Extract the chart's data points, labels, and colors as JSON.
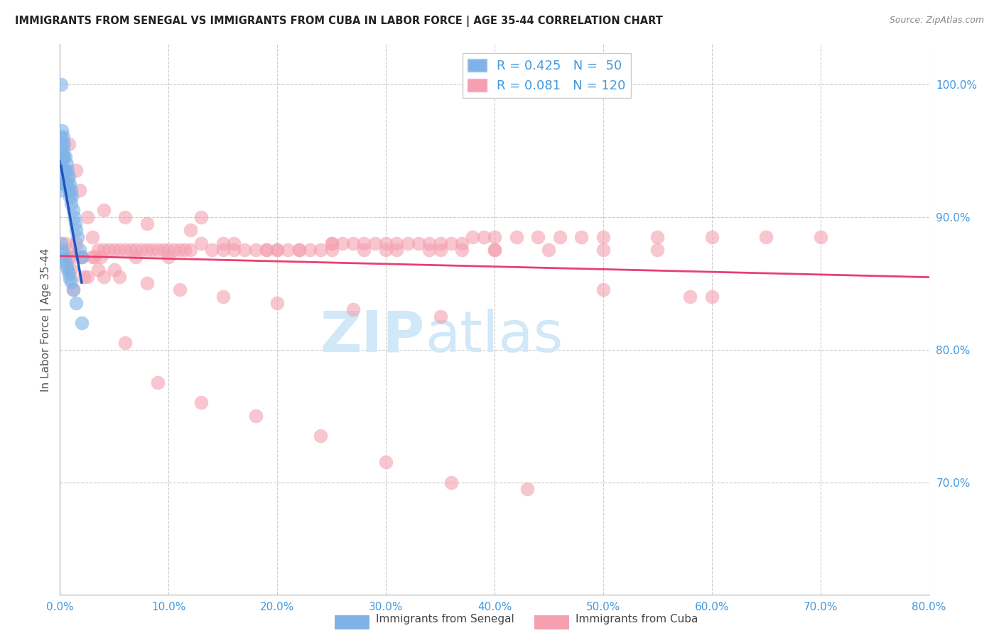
{
  "title": "IMMIGRANTS FROM SENEGAL VS IMMIGRANTS FROM CUBA IN LABOR FORCE | AGE 35-44 CORRELATION CHART",
  "source": "Source: ZipAtlas.com",
  "ylabel_left": "In Labor Force | Age 35-44",
  "x_tick_labels": [
    "0.0%",
    "10.0%",
    "20.0%",
    "30.0%",
    "40.0%",
    "50.0%",
    "60.0%",
    "70.0%",
    "80.0%"
  ],
  "x_tick_vals": [
    0.0,
    0.1,
    0.2,
    0.3,
    0.4,
    0.5,
    0.6,
    0.7,
    0.8
  ],
  "y_tick_labels_right": [
    "100.0%",
    "90.0%",
    "80.0%",
    "70.0%"
  ],
  "y_tick_vals": [
    1.0,
    0.9,
    0.8,
    0.7
  ],
  "xlim": [
    0.0,
    0.8
  ],
  "ylim": [
    0.615,
    1.03
  ],
  "legend_R_senegal": "R = 0.425",
  "legend_N_senegal": "N =  50",
  "legend_R_cuba": "R = 0.081",
  "legend_N_cuba": "N = 120",
  "color_senegal": "#7fb3e8",
  "color_cuba": "#f4a0b0",
  "color_senegal_line": "#2255bb",
  "color_cuba_line": "#e84070",
  "color_title": "#222222",
  "color_source": "#888888",
  "color_axis_labels": "#4499dd",
  "color_grid": "#cccccc",
  "watermark_zip": "ZIP",
  "watermark_atlas": "atlas",
  "watermark_color": "#d0e8f8",
  "senegal_x": [
    0.001,
    0.001,
    0.001,
    0.002,
    0.002,
    0.002,
    0.002,
    0.003,
    0.003,
    0.003,
    0.003,
    0.003,
    0.004,
    0.004,
    0.004,
    0.004,
    0.005,
    0.005,
    0.005,
    0.006,
    0.006,
    0.007,
    0.007,
    0.008,
    0.008,
    0.009,
    0.009,
    0.01,
    0.01,
    0.011,
    0.012,
    0.013,
    0.014,
    0.015,
    0.016,
    0.018,
    0.02,
    0.001,
    0.002,
    0.003,
    0.004,
    0.005,
    0.006,
    0.007,
    0.008,
    0.009,
    0.01,
    0.012,
    0.015,
    0.02
  ],
  "senegal_y": [
    1.0,
    0.96,
    0.92,
    0.965,
    0.955,
    0.945,
    0.935,
    0.96,
    0.95,
    0.945,
    0.935,
    0.925,
    0.955,
    0.945,
    0.935,
    0.925,
    0.945,
    0.935,
    0.925,
    0.94,
    0.93,
    0.935,
    0.925,
    0.93,
    0.92,
    0.925,
    0.915,
    0.92,
    0.91,
    0.915,
    0.905,
    0.9,
    0.895,
    0.89,
    0.885,
    0.875,
    0.87,
    0.88,
    0.875,
    0.872,
    0.869,
    0.866,
    0.863,
    0.86,
    0.857,
    0.854,
    0.851,
    0.845,
    0.835,
    0.82
  ],
  "cuba_x": [
    0.005,
    0.008,
    0.01,
    0.012,
    0.015,
    0.018,
    0.02,
    0.025,
    0.03,
    0.032,
    0.035,
    0.038,
    0.04,
    0.045,
    0.05,
    0.055,
    0.06,
    0.065,
    0.07,
    0.075,
    0.08,
    0.085,
    0.09,
    0.095,
    0.1,
    0.105,
    0.11,
    0.115,
    0.12,
    0.13,
    0.14,
    0.15,
    0.16,
    0.17,
    0.18,
    0.19,
    0.2,
    0.21,
    0.22,
    0.23,
    0.24,
    0.25,
    0.26,
    0.27,
    0.28,
    0.29,
    0.3,
    0.31,
    0.32,
    0.33,
    0.34,
    0.35,
    0.36,
    0.37,
    0.38,
    0.39,
    0.4,
    0.42,
    0.44,
    0.46,
    0.48,
    0.5,
    0.55,
    0.6,
    0.65,
    0.7,
    0.01,
    0.02,
    0.03,
    0.05,
    0.07,
    0.1,
    0.13,
    0.16,
    0.19,
    0.22,
    0.25,
    0.28,
    0.31,
    0.34,
    0.37,
    0.4,
    0.04,
    0.06,
    0.08,
    0.12,
    0.15,
    0.2,
    0.25,
    0.3,
    0.35,
    0.4,
    0.45,
    0.5,
    0.55,
    0.6,
    0.008,
    0.015,
    0.025,
    0.04,
    0.06,
    0.09,
    0.13,
    0.18,
    0.24,
    0.3,
    0.36,
    0.43,
    0.5,
    0.58,
    0.012,
    0.022,
    0.035,
    0.055,
    0.08,
    0.11,
    0.15,
    0.2,
    0.27,
    0.35
  ],
  "cuba_y": [
    0.88,
    0.87,
    0.875,
    0.87,
    0.88,
    0.92,
    0.87,
    0.9,
    0.885,
    0.87,
    0.875,
    0.87,
    0.875,
    0.875,
    0.875,
    0.875,
    0.875,
    0.875,
    0.875,
    0.875,
    0.875,
    0.875,
    0.875,
    0.875,
    0.875,
    0.875,
    0.875,
    0.875,
    0.875,
    0.88,
    0.875,
    0.875,
    0.875,
    0.875,
    0.875,
    0.875,
    0.875,
    0.875,
    0.875,
    0.875,
    0.875,
    0.88,
    0.88,
    0.88,
    0.88,
    0.88,
    0.88,
    0.88,
    0.88,
    0.88,
    0.88,
    0.88,
    0.88,
    0.88,
    0.885,
    0.885,
    0.885,
    0.885,
    0.885,
    0.885,
    0.885,
    0.885,
    0.885,
    0.885,
    0.885,
    0.885,
    0.86,
    0.87,
    0.87,
    0.86,
    0.87,
    0.87,
    0.9,
    0.88,
    0.875,
    0.875,
    0.88,
    0.875,
    0.875,
    0.875,
    0.875,
    0.875,
    0.905,
    0.9,
    0.895,
    0.89,
    0.88,
    0.875,
    0.875,
    0.875,
    0.875,
    0.875,
    0.875,
    0.875,
    0.875,
    0.84,
    0.955,
    0.935,
    0.855,
    0.855,
    0.805,
    0.775,
    0.76,
    0.75,
    0.735,
    0.715,
    0.7,
    0.695,
    0.845,
    0.84,
    0.845,
    0.855,
    0.86,
    0.855,
    0.85,
    0.845,
    0.84,
    0.835,
    0.83,
    0.825
  ]
}
